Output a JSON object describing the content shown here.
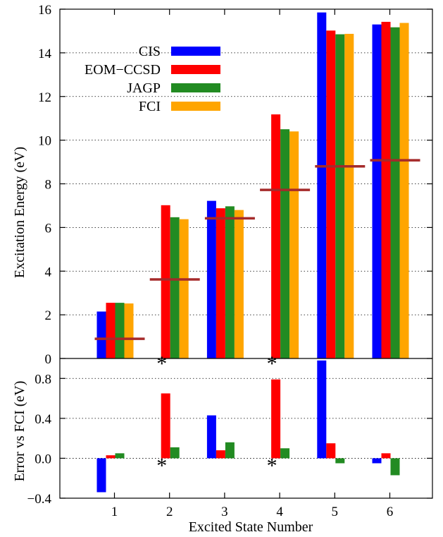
{
  "chart_data": [
    {
      "type": "bar",
      "categories": [
        "1",
        "2",
        "3",
        "4",
        "5",
        "6"
      ],
      "xlabel": "Excited State Number",
      "ylabel": "Excitation Energy (eV)",
      "ylim": [
        0,
        16
      ],
      "yticks": [
        "0",
        "2",
        "4",
        "6",
        "8",
        "10",
        "12",
        "14",
        "16"
      ],
      "grid": "horizontal dotted",
      "legend": "upper-left",
      "series": [
        {
          "name": "CIS",
          "color": "#0000ff",
          "values": [
            2.15,
            null,
            7.22,
            null,
            15.85,
            15.3
          ]
        },
        {
          "name": "EOM−CCSD",
          "color": "#ff0000",
          "values": [
            2.55,
            7.02,
            6.88,
            11.18,
            15.02,
            15.42
          ]
        },
        {
          "name": "JAGP",
          "color": "#228b22",
          "values": [
            2.55,
            6.47,
            6.97,
            10.5,
            14.85,
            15.17
          ]
        },
        {
          "name": "FCI",
          "color": "#ffa500",
          "values": [
            2.52,
            6.38,
            6.8,
            10.4,
            14.87,
            15.37
          ]
        }
      ],
      "reference_lines": {
        "color": "#a52a2a",
        "values": [
          0.9,
          3.62,
          6.42,
          7.72,
          8.8,
          9.08
        ]
      }
    },
    {
      "type": "bar",
      "categories": [
        "1",
        "2",
        "3",
        "4",
        "5",
        "6"
      ],
      "xlabel": "Excited State Number",
      "ylabel": "Error vs FCI (eV)",
      "ylim": [
        -0.4,
        1.0
      ],
      "yticks": [
        "−0.4",
        "0.0",
        "0.4",
        "0.8"
      ],
      "grid": "horizontal dotted",
      "series": [
        {
          "name": "CIS",
          "color": "#0000ff",
          "values": [
            -0.34,
            null,
            0.43,
            null,
            0.98,
            -0.05
          ]
        },
        {
          "name": "EOM−CCSD",
          "color": "#ff0000",
          "values": [
            0.03,
            0.65,
            0.08,
            0.79,
            0.15,
            0.05
          ]
        },
        {
          "name": "JAGP",
          "color": "#228b22",
          "values": [
            0.05,
            0.11,
            0.16,
            0.1,
            -0.05,
            -0.17
          ]
        }
      ],
      "markers": {
        "symbol": "*",
        "color": "#0000ff",
        "categories": [
          "2",
          "4"
        ],
        "values_bottom": [
          -0.05,
          -0.05
        ],
        "values_top": [
          0.97,
          0.97
        ]
      }
    }
  ]
}
